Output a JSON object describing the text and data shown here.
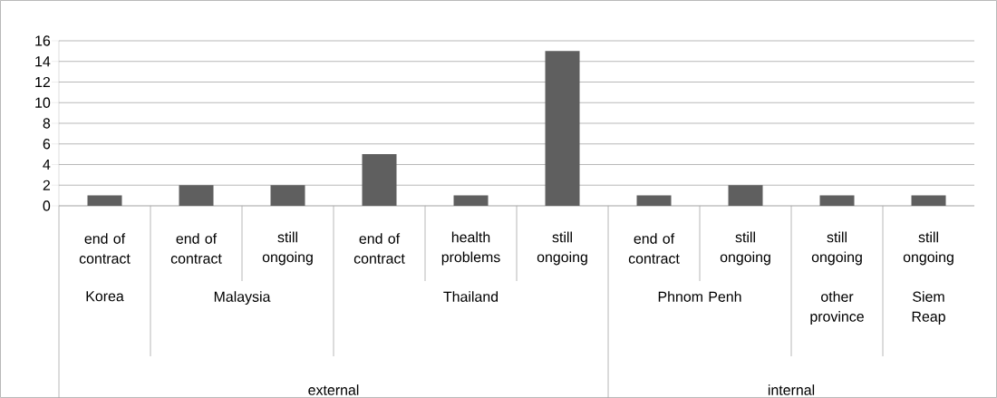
{
  "chart_data": {
    "type": "bar",
    "categories": [
      "end of contract",
      "end of contract",
      "still ongoing",
      "end of contract",
      "health problems",
      "still ongoing",
      "end of contract",
      "still ongoing",
      "still ongoing",
      "still ongoing"
    ],
    "values": [
      1,
      2,
      2,
      5,
      1,
      15,
      1,
      2,
      1,
      1
    ],
    "color": "#5f5f5f",
    "ylim": [
      0,
      16
    ],
    "yticks": [
      0,
      2,
      4,
      6,
      8,
      10,
      12,
      14,
      16
    ],
    "grid": "y",
    "annotations": [
      "Korea",
      "Malaysia",
      "Thailand",
      "Phnom Penh",
      "other province",
      "Siem Reap",
      "external",
      "internal"
    ]
  }
}
